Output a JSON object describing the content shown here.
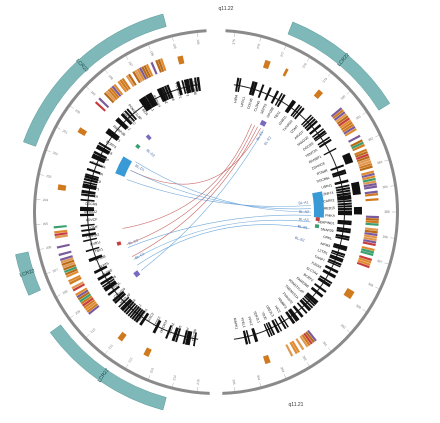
{
  "band_top": "q11.22",
  "band_bottom": "q11.21",
  "lcrs": [
    {
      "label": "LCR22",
      "a0": 22,
      "a1": 58
    },
    {
      "label": "LCR22",
      "a0": 290,
      "a1": 345
    },
    {
      "label": "LCR22",
      "a0": 246,
      "a1": 258
    },
    {
      "label": "LCR22",
      "a0": 195,
      "a1": 234
    }
  ],
  "ticks_right": [
    "375",
    "376",
    "377",
    "378",
    "379",
    "380",
    "381",
    "382",
    "383",
    "384",
    "385",
    "386",
    "387",
    "388",
    "389",
    "390",
    "391",
    "392",
    "393",
    "394",
    "395"
  ],
  "ticks_left": [
    "215",
    "214",
    "213",
    "212",
    "211",
    "210",
    "209",
    "208",
    "207",
    "206",
    "205",
    "204",
    "203",
    "202",
    "201",
    "200",
    "199",
    "198",
    "197",
    "196",
    "195",
    "194"
  ],
  "genes_right": [
    "HIRA",
    "UFD1L",
    "CDC45",
    "CLDN5",
    "SEPT5",
    "GP1BB",
    "TBX1",
    "GNB1L",
    "TXNRD2",
    "COMT",
    "ARVCF",
    "TANGO2",
    "DGCR8",
    "TRMT2A",
    "RANBP1",
    "ZDHHC8",
    "RTN4R",
    "DGCR6L",
    "USP41",
    "ZNF74",
    "SCARF2",
    "MED15",
    "PI4KA",
    "SERPIND1",
    "SNAP29",
    "CRKL",
    "AIFM3",
    "LZTR1",
    "THAP7",
    "P2RX6",
    "SLC7A4",
    "BCRP2",
    "FAM230B",
    "POM121L4P",
    "TMEM191A",
    "PI4KAP2",
    "RIMBP3",
    "HIC2",
    "UBE2L3",
    "YDJC",
    "SDF2L1",
    "PPIL2",
    "YPEL1",
    "MAPK1"
  ],
  "genes_left": [
    "DGCR6",
    "PRODH",
    "DGCR5",
    "DGCR2",
    "DGCR14",
    "TSSK2",
    "GSC2",
    "SLC25A1",
    "CLTCL1",
    "HIRA",
    "MRPL40",
    "C22orf39",
    "UFD1L",
    "CDC45",
    "CLDN5",
    "SEPT5",
    "GP1BB",
    "TBX1",
    "GNB1L",
    "TXNRD2",
    "COMT",
    "ARVCF",
    "TANGO2",
    "DGCR8",
    "TRMT2A",
    "RANBP1",
    "ZDHHC8",
    "RTN4R",
    "FAM230A",
    "GGT3P",
    "USP18",
    "BCRP3",
    "PI4KAP1",
    "RIMBP3B",
    "HIC2",
    "TMEM191C",
    "POM121L8P",
    "BCR",
    "IGLL1",
    "RSPH14",
    "GNAZ",
    "RAB36",
    "FBXW4P1",
    "CES5AP1",
    "ZNF280B"
  ],
  "labels_inner": [
    "BL-D1",
    "BL-D2",
    "BL-C1",
    "BL-C2",
    "BL-B1",
    "BL-B2",
    "BL-A1",
    "BL-A2",
    "BL-A3",
    "BL-E1",
    "BL-E2"
  ],
  "links": [
    {
      "from": 22,
      "to": 260,
      "color": "#c0504d"
    },
    {
      "from": 24,
      "to": 250,
      "color": "#c0504d"
    },
    {
      "from": 26,
      "to": 242,
      "color": "#c0504d"
    },
    {
      "from": 28,
      "to": 296,
      "color": "#c0504d"
    },
    {
      "from": 30,
      "to": 232,
      "color": "#5b9bd5"
    },
    {
      "from": 86,
      "to": 290,
      "color": "#5b9bd5"
    },
    {
      "from": 88,
      "to": 296,
      "color": "#5b9bd5"
    },
    {
      "from": 90,
      "to": 302,
      "color": "#5b9bd5"
    },
    {
      "from": 92,
      "to": 248,
      "color": "#5b9bd5"
    },
    {
      "from": 96,
      "to": 240,
      "color": "#5b9bd5"
    },
    {
      "from": 100,
      "to": 236,
      "color": "#5b9bd5"
    }
  ]
}
